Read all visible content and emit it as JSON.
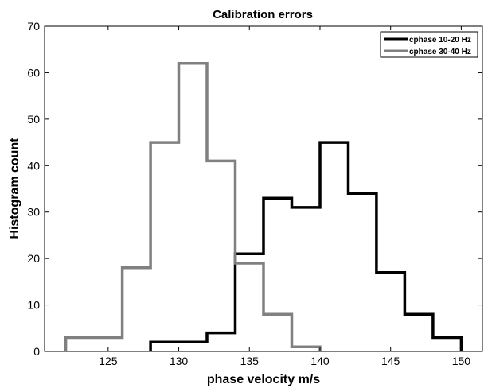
{
  "chart_data": {
    "type": "histogram",
    "title": "Calibration errors",
    "xlabel": "phase velocity m/s",
    "ylabel": "Histogram count",
    "xlim": [
      120.5,
      151.5
    ],
    "ylim": [
      0,
      70
    ],
    "xticks": [
      125,
      130,
      135,
      140,
      145,
      150
    ],
    "yticks": [
      0,
      10,
      20,
      30,
      40,
      50,
      60,
      70
    ],
    "grid": false,
    "legend_position": "top-right",
    "series": [
      {
        "name": "cphase 10-20 Hz",
        "color": "#000000",
        "bin_edges": [
          128,
          130,
          132,
          134,
          136,
          138,
          140,
          142,
          144,
          146,
          148,
          150
        ],
        "counts": [
          2,
          2,
          4,
          21,
          33,
          31,
          45,
          34,
          17,
          8,
          3
        ]
      },
      {
        "name": "cphase 30-40 Hz",
        "color": "#808080",
        "bin_edges": [
          122,
          124,
          126,
          128,
          130,
          132,
          134,
          136,
          138,
          140
        ],
        "counts": [
          3,
          3,
          18,
          45,
          62,
          41,
          19,
          8,
          1
        ]
      }
    ]
  }
}
